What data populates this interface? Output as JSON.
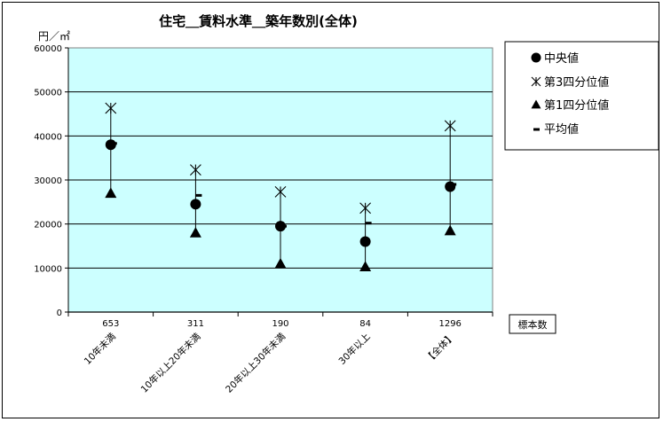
{
  "chart_data": {
    "type": "scatter",
    "title": "住宅＿賃料水準＿築年数別(全体)",
    "ylabel": "円／㎡",
    "ylim": [
      0,
      60000
    ],
    "yticks": [
      0,
      10000,
      20000,
      30000,
      40000,
      50000,
      60000
    ],
    "grid": true,
    "plot_background": "#ccffff",
    "categories": [
      "10年未満",
      "10年以上20年未満",
      "20年以上30年未満",
      "30年以上",
      "【全体】"
    ],
    "sample_label": "標本数",
    "sample_counts": [
      "653",
      "311",
      "190",
      "84",
      "1296"
    ],
    "legend_position": "right",
    "series": [
      {
        "name": "中央値",
        "marker": "circle",
        "values": [
          38000,
          24500,
          19500,
          16000,
          28500
        ]
      },
      {
        "name": "第3四分位値",
        "marker": "asterisk",
        "values": [
          46300,
          32300,
          27300,
          23600,
          42300
        ]
      },
      {
        "name": "第1四分位値",
        "marker": "triangle",
        "values": [
          27000,
          18000,
          11000,
          10300,
          18500
        ]
      },
      {
        "name": "平均値",
        "marker": "dash",
        "values": [
          38300,
          26500,
          19500,
          20200,
          29000
        ]
      }
    ]
  }
}
